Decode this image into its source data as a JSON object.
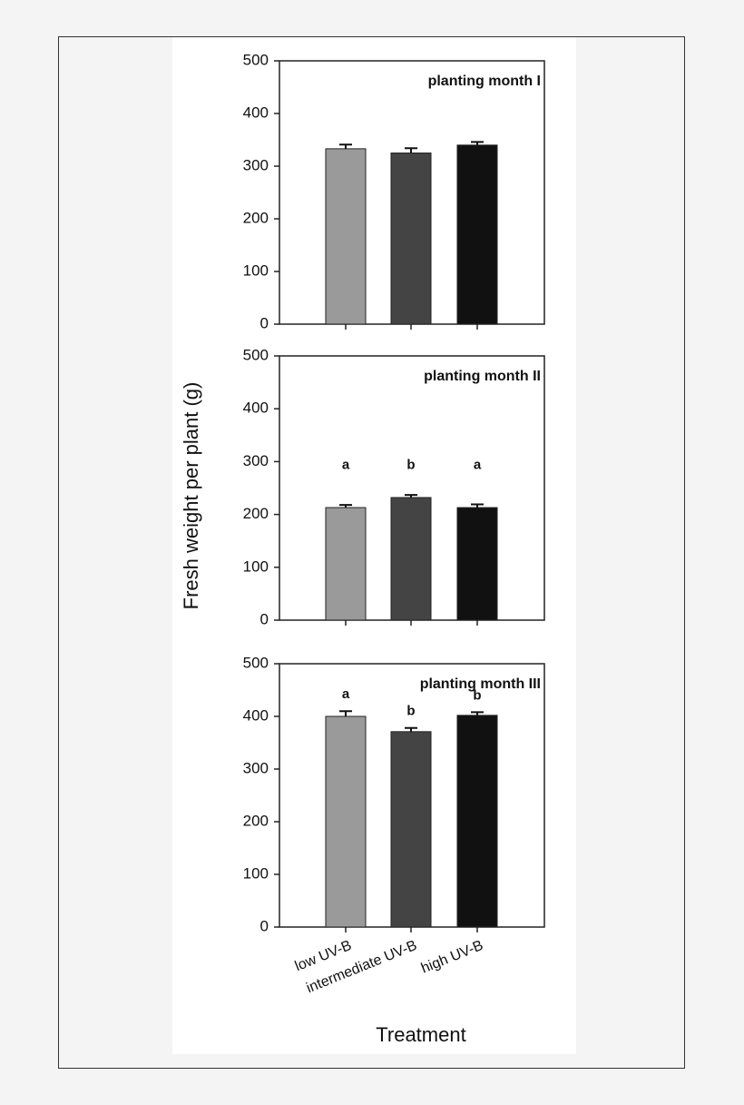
{
  "ylabel": "Fresh weight per plant (g)",
  "xlabel": "Treatment",
  "chart_data": [
    {
      "type": "bar",
      "title": "planting month I",
      "categories": [
        null,
        null,
        null
      ],
      "values": [
        333,
        325,
        340
      ],
      "errors": [
        8,
        9,
        6
      ],
      "colors": [
        "#9a9a9a",
        "#444444",
        "#111111"
      ],
      "ylim": [
        0,
        500
      ],
      "yticks": [
        0,
        100,
        200,
        300,
        400,
        500
      ]
    },
    {
      "type": "bar",
      "title": "planting month II",
      "categories": [
        null,
        null,
        null
      ],
      "values": [
        213,
        232,
        213
      ],
      "errors": [
        5,
        5,
        6
      ],
      "letters": [
        "a",
        "b",
        "a"
      ],
      "colors": [
        "#9a9a9a",
        "#444444",
        "#111111"
      ],
      "ylim": [
        0,
        500
      ],
      "yticks": [
        0,
        100,
        200,
        300,
        400,
        500
      ]
    },
    {
      "type": "bar",
      "title": "planting month III",
      "categories": [
        "low UV-B",
        "intermediate UV-B",
        "high UV-B"
      ],
      "values": [
        400,
        371,
        402
      ],
      "errors": [
        10,
        7,
        6
      ],
      "letters": [
        "a",
        "b",
        "b"
      ],
      "colors": [
        "#9a9a9a",
        "#444444",
        "#111111"
      ],
      "ylim": [
        0,
        500
      ],
      "yticks": [
        0,
        100,
        200,
        300,
        400,
        500
      ]
    }
  ]
}
